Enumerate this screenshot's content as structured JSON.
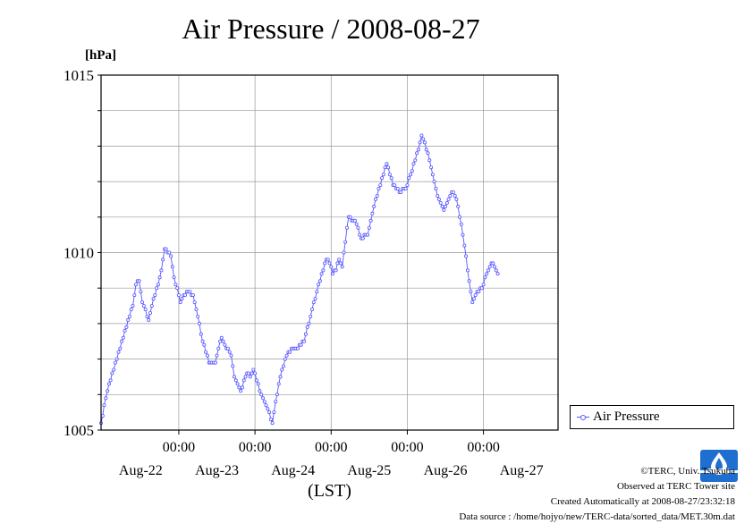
{
  "unit_label": "[hPa]",
  "footer": {
    "copyright": "©TERC, Univ. Tsukuba",
    "observed": "Observed at TERC Tower site",
    "created": "Created Automatically at 2008-08-27/23:32:18",
    "source": "Data source : /home/hojyo/new/TERC-data/sorted_data/MET.30m.dat"
  },
  "logo": {
    "text": "TERC",
    "color": "#1e6fd0"
  },
  "colors": {
    "series": "#5555ff",
    "grid": "#999999",
    "axis": "#000000"
  },
  "chart_data": {
    "type": "line",
    "title": "Air Pressure / 2008-08-27",
    "xlabel": "(LST)",
    "ylabel": "[hPa]",
    "ylim": [
      1005,
      1015
    ],
    "yticks": [
      1005,
      1010,
      1015
    ],
    "yminor_step": 1,
    "xlim_hours": [
      0,
      144
    ],
    "x_tick_labels": [
      "00:00",
      "00:00",
      "00:00",
      "00:00",
      "00:00"
    ],
    "x_date_labels": [
      "Aug-22",
      "Aug-23",
      "Aug-24",
      "Aug-25",
      "Aug-26",
      "Aug-27"
    ],
    "grid": true,
    "legend_placement": "right, below plot",
    "series": [
      {
        "name": "Air Pressure",
        "marker": "open-circle",
        "x_start": "2008-08-21 23:30",
        "interval_minutes": 30,
        "anchors": [
          [
            0,
            1005.2
          ],
          [
            2,
            1006.1
          ],
          [
            5,
            1007.0
          ],
          [
            8,
            1007.9
          ],
          [
            10,
            1008.5
          ],
          [
            11,
            1009.1
          ],
          [
            12,
            1009.2
          ],
          [
            13,
            1008.6
          ],
          [
            15,
            1008.1
          ],
          [
            16,
            1008.5
          ],
          [
            18,
            1009.1
          ],
          [
            19,
            1009.5
          ],
          [
            20,
            1010.1
          ],
          [
            22,
            1009.9
          ],
          [
            23,
            1009.3
          ],
          [
            25,
            1008.6
          ],
          [
            27,
            1008.9
          ],
          [
            29,
            1008.8
          ],
          [
            30,
            1008.4
          ],
          [
            32,
            1007.5
          ],
          [
            34,
            1006.9
          ],
          [
            36,
            1006.9
          ],
          [
            37,
            1007.3
          ],
          [
            38,
            1007.6
          ],
          [
            39,
            1007.4
          ],
          [
            41,
            1007.1
          ],
          [
            42,
            1006.5
          ],
          [
            44,
            1006.1
          ],
          [
            46,
            1006.6
          ],
          [
            47,
            1006.5
          ],
          [
            48,
            1006.7
          ],
          [
            50,
            1006.1
          ],
          [
            52,
            1005.7
          ],
          [
            54,
            1005.2
          ],
          [
            56,
            1006.3
          ],
          [
            58,
            1007.0
          ],
          [
            60,
            1007.3
          ],
          [
            62,
            1007.3
          ],
          [
            64,
            1007.5
          ],
          [
            66,
            1008.2
          ],
          [
            68,
            1008.9
          ],
          [
            70,
            1009.5
          ],
          [
            71,
            1009.8
          ],
          [
            72,
            1009.7
          ],
          [
            73,
            1009.4
          ],
          [
            74,
            1009.5
          ],
          [
            75,
            1009.8
          ],
          [
            76,
            1009.6
          ],
          [
            77,
            1010.3
          ],
          [
            78,
            1011.0
          ],
          [
            79,
            1010.9
          ],
          [
            80,
            1010.9
          ],
          [
            82,
            1010.4
          ],
          [
            84,
            1010.5
          ],
          [
            86,
            1011.3
          ],
          [
            88,
            1011.9
          ],
          [
            90,
            1012.5
          ],
          [
            92,
            1011.9
          ],
          [
            94,
            1011.7
          ],
          [
            96,
            1011.8
          ],
          [
            98,
            1012.3
          ],
          [
            100,
            1012.9
          ],
          [
            101,
            1013.3
          ],
          [
            103,
            1012.8
          ],
          [
            105,
            1012.0
          ],
          [
            106,
            1011.6
          ],
          [
            107,
            1011.4
          ],
          [
            108,
            1011.2
          ],
          [
            110,
            1011.6
          ],
          [
            111,
            1011.7
          ],
          [
            112,
            1011.5
          ],
          [
            114,
            1010.5
          ],
          [
            116,
            1009.2
          ],
          [
            117,
            1008.6
          ],
          [
            118,
            1008.8
          ],
          [
            120,
            1009.0
          ],
          [
            122,
            1009.5
          ],
          [
            123,
            1009.7
          ],
          [
            124,
            1009.6
          ],
          [
            125,
            1009.4
          ]
        ]
      }
    ]
  }
}
